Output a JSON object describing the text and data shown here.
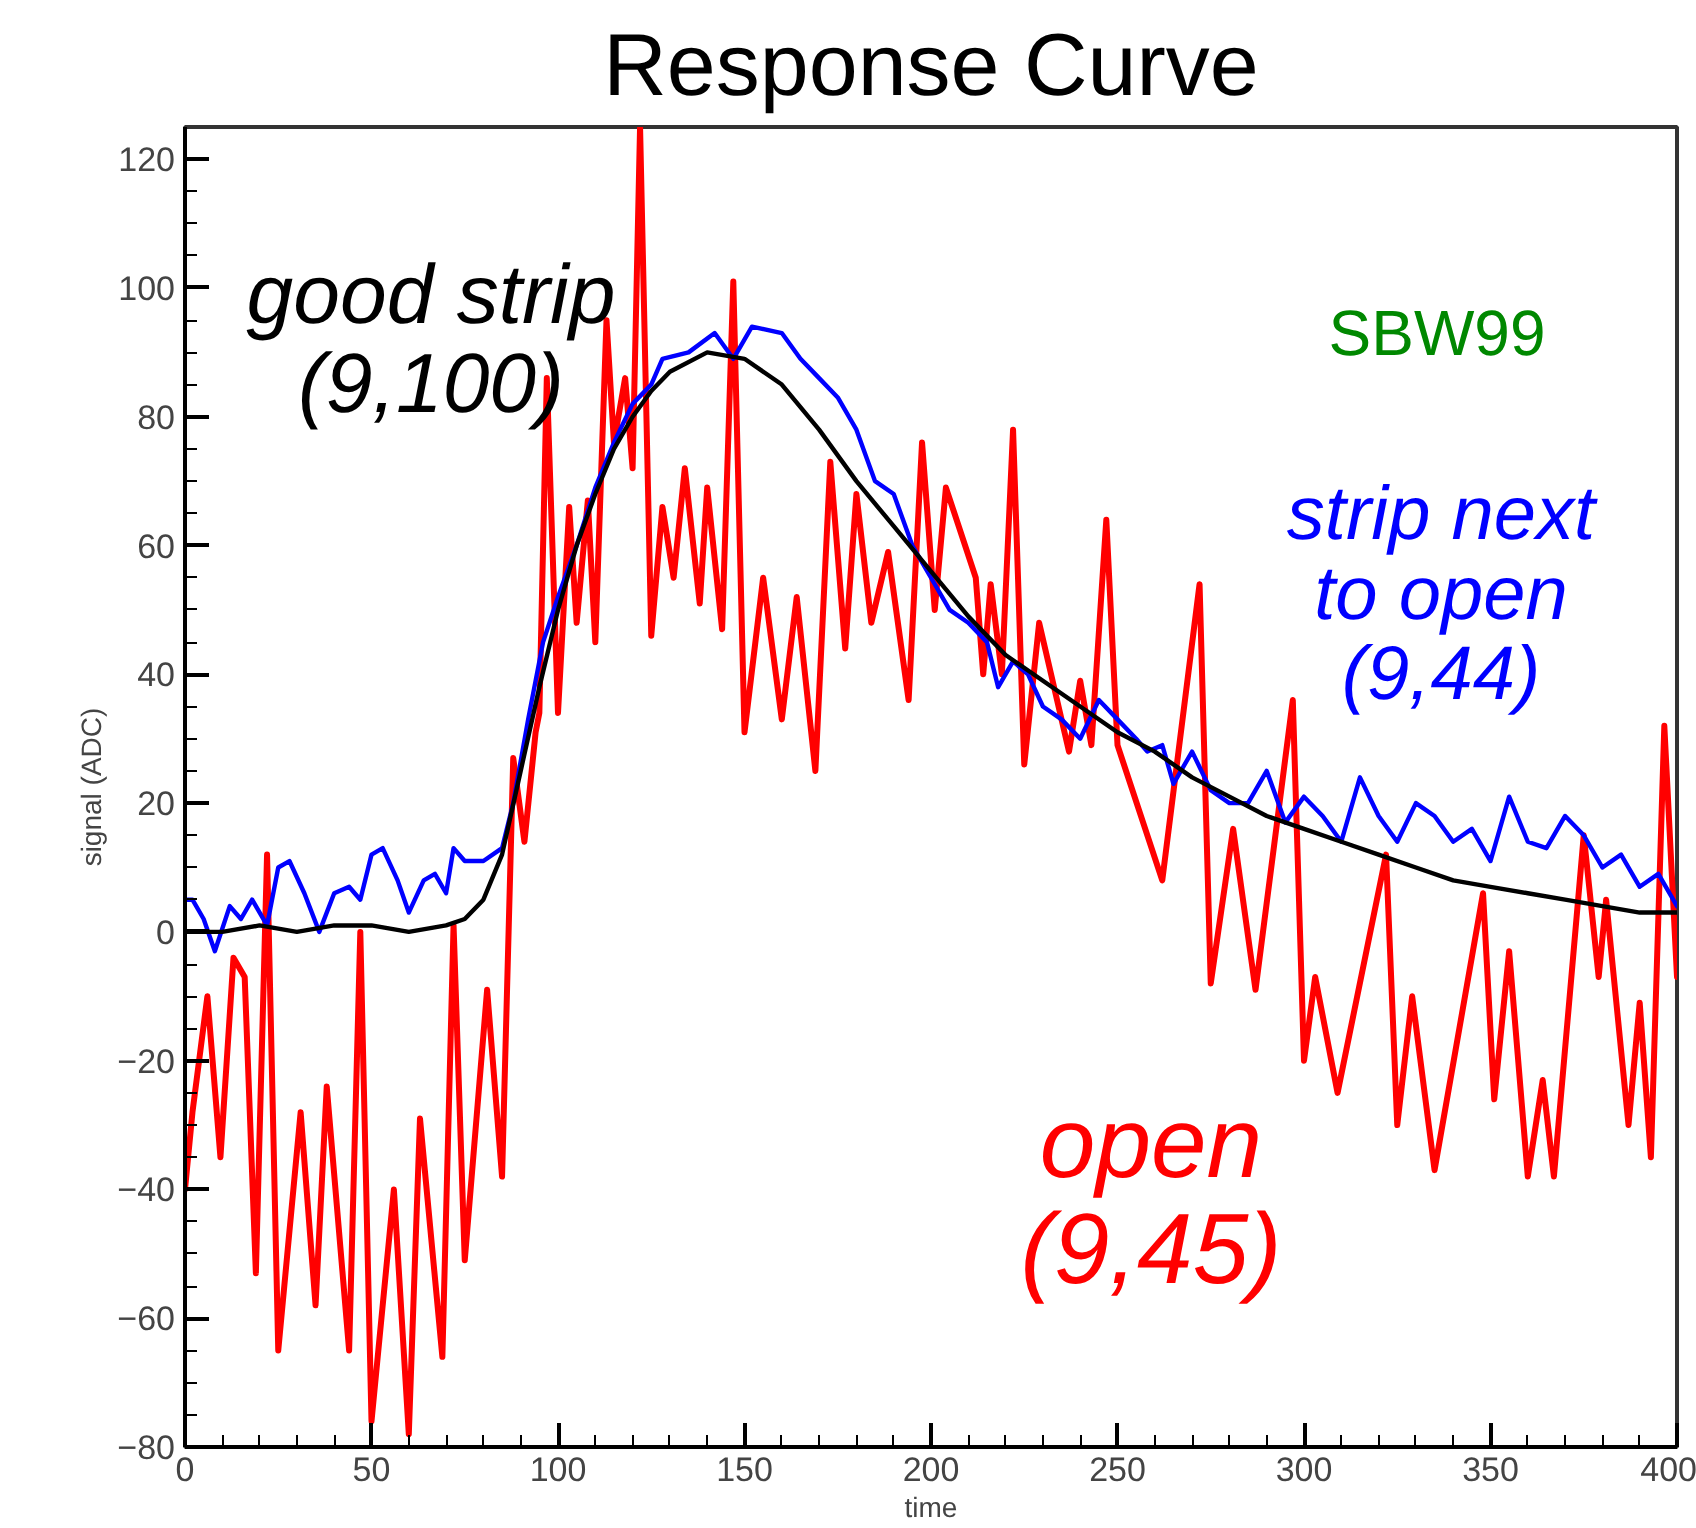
{
  "chart_data": {
    "type": "line",
    "title": "Response Curve",
    "xlabel": "time",
    "ylabel": "signal (ADC)",
    "xlim": [
      0,
      400
    ],
    "ylim": [
      -80,
      125
    ],
    "xticks": [
      0,
      50,
      100,
      150,
      200,
      250,
      300,
      350,
      400,
      {
        "value": 10,
        "label": null
      },
      {
        "value": 20,
        "label": null
      },
      {
        "value": 30,
        "label": null
      },
      {
        "value": 40,
        "label": null
      },
      {
        "value": 60,
        "label": null
      },
      {
        "value": 70,
        "label": null
      },
      {
        "value": 80,
        "label": null
      },
      {
        "value": 90,
        "label": null
      },
      {
        "value": 110,
        "label": null
      },
      {
        "value": 120,
        "label": null
      },
      {
        "value": 130,
        "label": null
      },
      {
        "value": 140,
        "label": null
      },
      {
        "value": 160,
        "label": null
      },
      {
        "value": 170,
        "label": null
      },
      {
        "value": 180,
        "label": null
      },
      {
        "value": 190,
        "label": null
      },
      {
        "value": 210,
        "label": null
      },
      {
        "value": 220,
        "label": null
      },
      {
        "value": 230,
        "label": null
      },
      {
        "value": 240,
        "label": null
      },
      {
        "value": 260,
        "label": null
      },
      {
        "value": 270,
        "label": null
      },
      {
        "value": 280,
        "label": null
      },
      {
        "value": 290,
        "label": null
      },
      {
        "value": 310,
        "label": null
      },
      {
        "value": 320,
        "label": null
      },
      {
        "value": 330,
        "label": null
      },
      {
        "value": 340,
        "label": null
      },
      {
        "value": 360,
        "label": null
      },
      {
        "value": 370,
        "label": null
      },
      {
        "value": 380,
        "label": null
      },
      {
        "value": 390,
        "label": null
      }
    ],
    "yticks": [
      -80,
      -60,
      -40,
      -20,
      0,
      20,
      40,
      60,
      80,
      100,
      120,
      {
        "value": -75,
        "label": null
      },
      {
        "value": -70,
        "label": null
      },
      {
        "value": -65,
        "label": null
      },
      {
        "value": -55,
        "label": null
      },
      {
        "value": -50,
        "label": null
      },
      {
        "value": -45,
        "label": null
      },
      {
        "value": -35,
        "label": null
      },
      {
        "value": -30,
        "label": null
      },
      {
        "value": -25,
        "label": null
      },
      {
        "value": -15,
        "label": null
      },
      {
        "value": -10,
        "label": null
      },
      {
        "value": -5,
        "label": null
      },
      {
        "value": 5,
        "label": null
      },
      {
        "value": 10,
        "label": null
      },
      {
        "value": 15,
        "label": null
      },
      {
        "value": 25,
        "label": null
      },
      {
        "value": 30,
        "label": null
      },
      {
        "value": 35,
        "label": null
      },
      {
        "value": 45,
        "label": null
      },
      {
        "value": 50,
        "label": null
      },
      {
        "value": 55,
        "label": null
      },
      {
        "value": 65,
        "label": null
      },
      {
        "value": 70,
        "label": null
      },
      {
        "value": 75,
        "label": null
      },
      {
        "value": 85,
        "label": null
      },
      {
        "value": 90,
        "label": null
      },
      {
        "value": 95,
        "label": null
      },
      {
        "value": 105,
        "label": null
      },
      {
        "value": 110,
        "label": null
      },
      {
        "value": 115,
        "label": null
      }
    ],
    "grid": false,
    "legend": false,
    "annotations": [
      "SBW99"
    ],
    "series": [
      {
        "name": "open\n(9,45)",
        "color": "#ff0000",
        "x": [
          0,
          2,
          6,
          9.5,
          13,
          16,
          19,
          22,
          25,
          31,
          35,
          38,
          44,
          47,
          50,
          56,
          60,
          63,
          69,
          72,
          75,
          81,
          85,
          88,
          91,
          94,
          95,
          97,
          100,
          103,
          105,
          108,
          110,
          113,
          115,
          118,
          120,
          122,
          125,
          128,
          131,
          134,
          138,
          140,
          144,
          147,
          150,
          155,
          160,
          164,
          169,
          173,
          177,
          180,
          184,
          188.5,
          194,
          197.6,
          201,
          204,
          212,
          214,
          216,
          219,
          222,
          225,
          229,
          237,
          240,
          243,
          247,
          250,
          262,
          272,
          275,
          281,
          287,
          297,
          300,
          303,
          309,
          322,
          325,
          329,
          335,
          348,
          351,
          355,
          360,
          364,
          367,
          375,
          379,
          381,
          387,
          390,
          393,
          396.6,
          400
        ],
        "values": [
          -40,
          -28,
          -10,
          -35,
          -4,
          -7,
          -53,
          12,
          -65,
          -28,
          -58,
          -24,
          -65,
          0,
          -76,
          -40,
          -78,
          -29,
          -66,
          1,
          -51,
          -9,
          -38,
          27,
          14,
          31,
          34,
          86,
          34,
          66,
          48,
          67,
          45,
          95,
          76,
          86,
          72,
          125,
          46,
          66,
          55,
          72,
          51,
          69,
          47,
          101,
          31,
          55,
          33,
          52,
          25,
          73,
          44,
          68,
          48,
          59,
          36,
          76,
          50,
          69,
          55,
          40,
          54,
          40,
          78,
          26,
          48,
          28,
          39,
          29,
          64,
          29,
          8,
          54,
          -8,
          16,
          -9,
          36,
          -20,
          -7,
          -25,
          12,
          -30,
          -10,
          -37,
          6,
          -26,
          -3,
          -38,
          -23,
          -38,
          15,
          -7,
          5,
          -30,
          -11,
          -35,
          32,
          -7
        ]
      },
      {
        "name": "strip next\nto open\n(9,44)",
        "color": "#0000ff",
        "x": [
          0,
          2,
          5,
          8,
          12,
          15,
          18,
          22,
          25,
          28,
          32,
          36,
          40,
          44,
          47,
          50,
          53,
          57,
          60,
          64,
          67,
          70,
          72,
          75,
          80,
          85,
          88,
          92,
          96,
          100,
          105,
          110,
          115,
          120,
          125,
          128,
          135,
          142,
          147,
          152,
          160,
          165,
          170,
          175,
          180,
          185,
          190,
          195,
          200,
          205,
          210,
          215,
          218,
          222,
          226,
          230,
          235,
          240,
          245,
          250,
          255,
          258,
          262,
          265,
          270,
          275,
          280,
          285,
          290,
          295,
          300,
          305,
          310,
          315,
          320,
          325,
          330,
          335,
          340,
          345,
          350,
          355,
          360,
          365,
          370,
          375,
          380,
          385,
          390,
          395,
          400
        ],
        "values": [
          5,
          5,
          2,
          -3,
          4,
          2,
          5,
          1,
          10,
          11,
          6,
          0,
          6,
          7,
          5,
          12,
          13,
          8,
          3,
          8,
          9,
          6,
          13,
          11,
          11,
          13,
          20,
          33,
          45,
          52,
          60,
          69,
          76,
          82,
          85,
          89,
          90,
          93,
          89,
          94,
          93,
          89,
          86,
          83,
          78,
          70,
          68,
          60,
          55,
          50,
          48,
          45,
          38,
          42,
          40,
          35,
          33,
          30,
          36,
          33,
          30,
          28,
          29,
          23,
          28,
          22,
          20,
          20,
          25,
          17,
          21,
          18,
          14,
          24,
          18,
          14,
          20,
          18,
          14,
          16,
          11,
          21,
          14,
          13,
          18,
          15,
          10,
          12,
          7,
          9,
          4
        ]
      },
      {
        "name": "good strip\n(9,100)",
        "color": "#000000",
        "x": [
          0,
          10,
          20,
          30,
          40,
          50,
          60,
          70,
          75,
          80,
          85,
          90,
          95,
          100,
          105,
          110,
          115,
          120,
          125,
          130,
          140,
          150,
          160,
          170,
          180,
          190,
          200,
          210,
          220,
          230,
          240,
          250,
          260,
          270,
          280,
          290,
          300,
          310,
          320,
          330,
          340,
          350,
          360,
          370,
          380,
          390,
          400
        ],
        "values": [
          0,
          0,
          1,
          0,
          1,
          1,
          0,
          1,
          2,
          5,
          12,
          25,
          38,
          50,
          60,
          68,
          75,
          80,
          84,
          87,
          90,
          89,
          85,
          78,
          70,
          63,
          56,
          49,
          43,
          39,
          35,
          31,
          28,
          24,
          21,
          18,
          16,
          14,
          12,
          10,
          8,
          7,
          6,
          5,
          4,
          3,
          3
        ]
      }
    ]
  }
}
